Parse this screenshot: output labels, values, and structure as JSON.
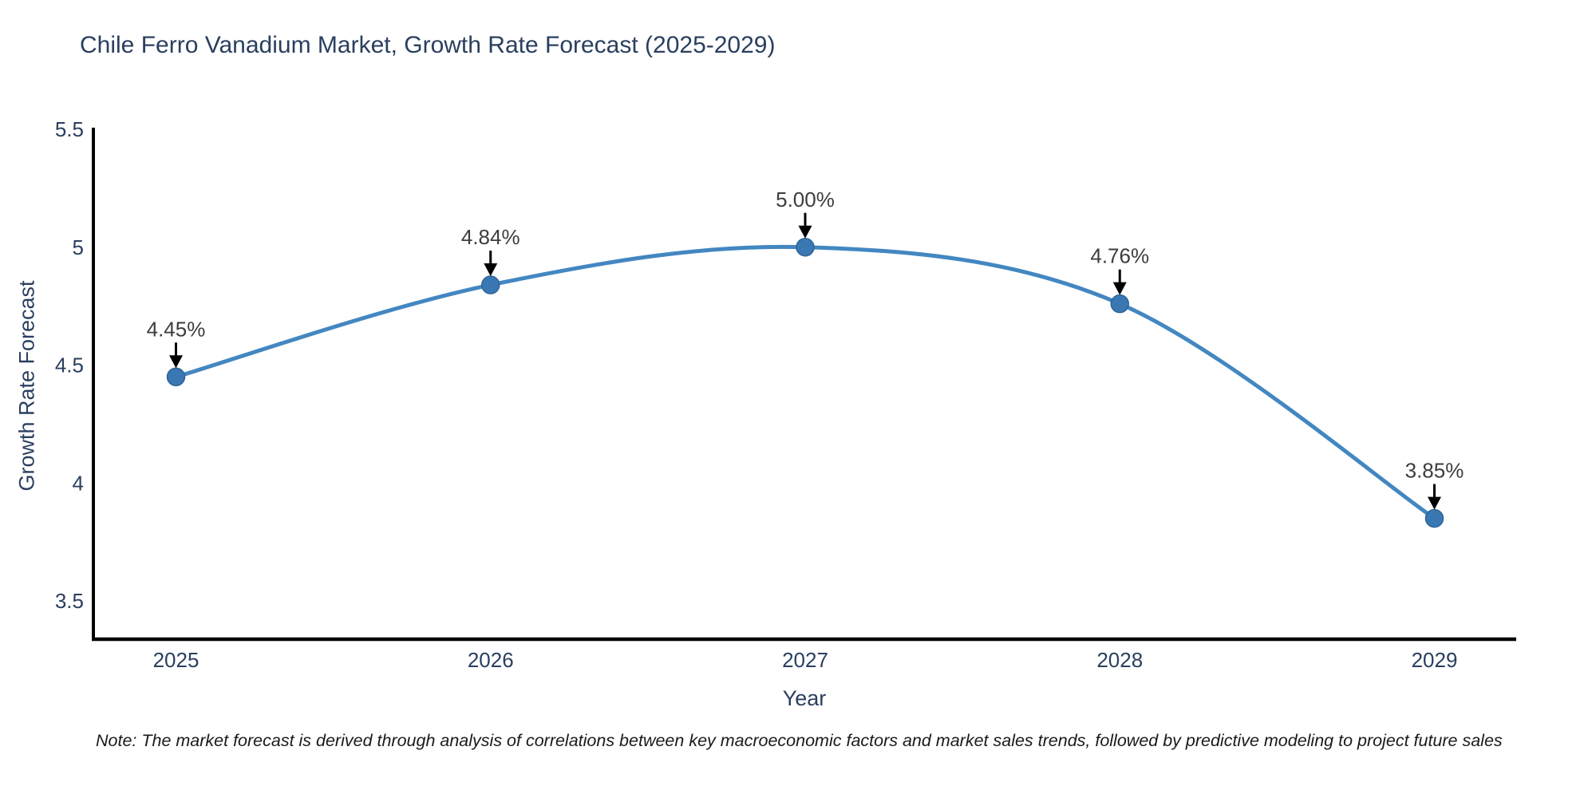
{
  "title": "Chile Ferro Vanadium Market, Growth Rate Forecast (2025-2029)",
  "footnote": "Note: The market forecast is derived through analysis of correlations between key macroeconomic factors and market sales trends, followed by predictive modeling to project future sales",
  "chart_data": {
    "type": "line",
    "title": "Chile Ferro Vanadium Market, Growth Rate Forecast (2025-2029)",
    "xlabel": "Year",
    "ylabel": "Growth Rate Forecast",
    "x": [
      2025,
      2026,
      2027,
      2028,
      2029
    ],
    "values": [
      4.45,
      4.84,
      5.0,
      4.76,
      3.85
    ],
    "point_labels": [
      "4.45%",
      "4.84%",
      "5.00%",
      "4.76%",
      "3.85%"
    ],
    "xtick_labels": [
      "2025",
      "2026",
      "2027",
      "2028",
      "2029"
    ],
    "yticks": [
      3.5,
      4,
      4.5,
      5,
      5.5
    ],
    "ytick_labels": [
      "3.5",
      "4",
      "4.5",
      "5",
      "5.5"
    ],
    "ylim": [
      3.34,
      5.51
    ],
    "xlim": [
      2024.74,
      2029.26
    ],
    "grid": false,
    "legend": false,
    "line_shape": "spline",
    "annotation_arrows": true,
    "colors": {
      "line": "#4387c1",
      "marker": "#3a78b3",
      "marker_edge": "#2f6399",
      "axis": "#000000",
      "tick_text": "#2a3f5f",
      "annotation_text": "#3d3d3d",
      "arrow": "#000000"
    }
  }
}
